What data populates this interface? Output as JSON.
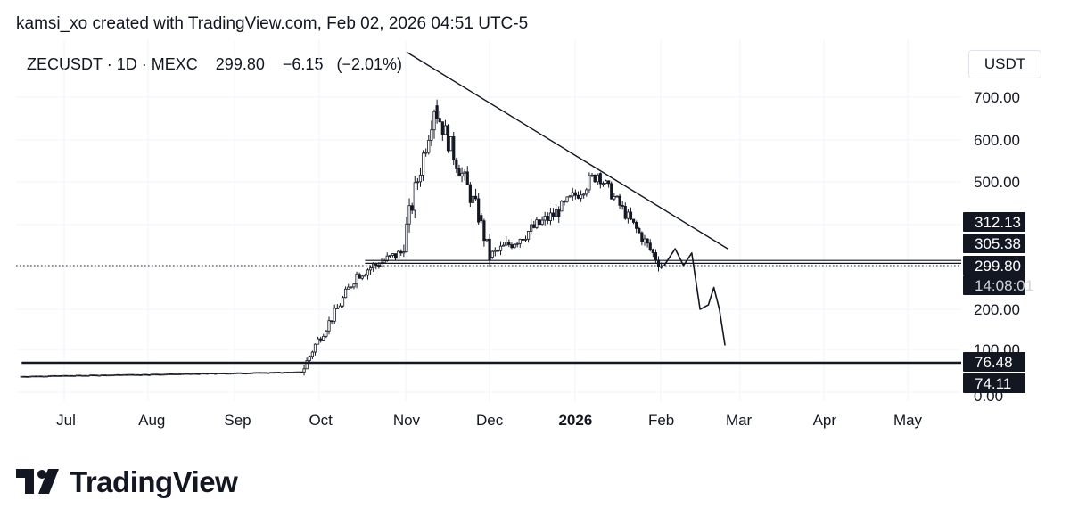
{
  "caption": "kamsi_xo created with TradingView.com, Feb 02, 2026 04:51 UTC-5",
  "header": {
    "symbol": "ZECUSDT",
    "interval": "1D",
    "exchange": "MEXC",
    "last_price": "299.80",
    "change": "−6.15",
    "change_pct": "(−2.01%)"
  },
  "axis_unit": "USDT",
  "brand": "TradingView",
  "chart_data": {
    "type": "candlestick",
    "title": "ZECUSDT · 1D · MEXC",
    "y_unit": "USDT",
    "y_ticks": [
      "700.00",
      "600.00",
      "500.00",
      "200.00",
      "100.00",
      "0.00"
    ],
    "x_ticks": [
      "Jul",
      "Aug",
      "Sep",
      "Oct",
      "Nov",
      "Dec",
      "2026",
      "Feb",
      "Mar",
      "Apr",
      "May"
    ],
    "price_labels": [
      {
        "value": "312.13",
        "style": "dark"
      },
      {
        "value": "305.38",
        "style": "dark"
      },
      {
        "value": "299.80",
        "style": "dark"
      },
      {
        "value": "14:08:01",
        "style": "dark-sub"
      },
      {
        "value": "76.48",
        "style": "dark"
      },
      {
        "value": "74.11",
        "style": "dark"
      }
    ],
    "period_segments": [
      {
        "from": "2025-06-15",
        "to": "2025-09-25",
        "start": 45,
        "end": 55,
        "amp": 1.5
      },
      {
        "from": "2025-09-25",
        "to": "2025-10-15",
        "start": 55,
        "end": 280,
        "amp": 25
      },
      {
        "from": "2025-10-15",
        "to": "2025-10-31",
        "start": 280,
        "end": 330,
        "amp": 30
      },
      {
        "from": "2025-10-31",
        "to": "2025-11-12",
        "start": 330,
        "end": 680,
        "amp": 55
      },
      {
        "from": "2025-11-12",
        "to": "2025-11-28",
        "start": 680,
        "end": 420,
        "amp": 50
      },
      {
        "from": "2025-11-28",
        "to": "2025-12-02",
        "start": 420,
        "end": 320,
        "amp": 40
      },
      {
        "from": "2025-12-02",
        "to": "2025-12-27",
        "start": 320,
        "end": 430,
        "amp": 35
      },
      {
        "from": "2025-12-27",
        "to": "2026-01-10",
        "start": 430,
        "end": 520,
        "amp": 35
      },
      {
        "from": "2026-01-10",
        "to": "2026-02-02",
        "start": 520,
        "end": 300,
        "amp": 30
      }
    ],
    "trendline": {
      "from": {
        "date": "2025-11-01",
        "value": 810
      },
      "to": {
        "date": "2026-02-25",
        "value": 340
      }
    },
    "horizontal_lines": [
      {
        "from": "2025-10-17",
        "value": 312.13
      },
      {
        "from": "2025-10-17",
        "value": 305.38
      },
      {
        "from": "2025-06-15",
        "value": 76.48
      }
    ],
    "current_price_line": {
      "value": 299.8,
      "style": "dotted"
    },
    "projection": [
      {
        "date": "2026-02-02",
        "value": 299.8
      },
      {
        "date": "2026-02-06",
        "value": 340
      },
      {
        "date": "2026-02-09",
        "value": 300
      },
      {
        "date": "2026-02-12",
        "value": 330
      },
      {
        "date": "2026-02-15",
        "value": 200
      },
      {
        "date": "2026-02-18",
        "value": 210
      },
      {
        "date": "2026-02-20",
        "value": 250
      },
      {
        "date": "2026-02-22",
        "value": 200
      },
      {
        "date": "2026-02-24",
        "value": 110
      }
    ],
    "colors": {
      "up": "#131722",
      "down": "#131722",
      "line": "#131722"
    },
    "grid": true
  }
}
